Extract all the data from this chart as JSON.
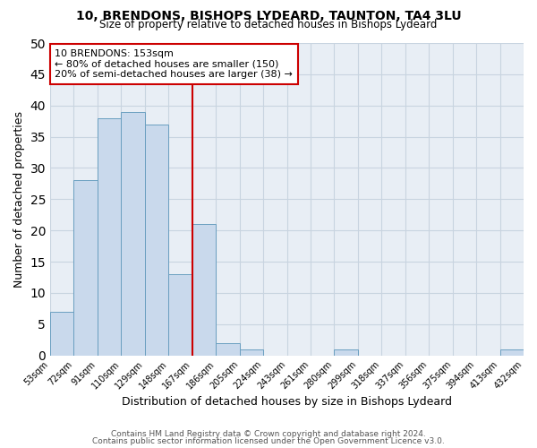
{
  "title": "10, BRENDONS, BISHOPS LYDEARD, TAUNTON, TA4 3LU",
  "subtitle": "Size of property relative to detached houses in Bishops Lydeard",
  "xlabel": "Distribution of detached houses by size in Bishops Lydeard",
  "ylabel": "Number of detached properties",
  "bar_color": "#c9d9ec",
  "bar_edge_color": "#6a9fc0",
  "background_color": "#ffffff",
  "plot_bg_color": "#e8eef5",
  "grid_color": "#c8d4e0",
  "annotation_box_color": "#cc0000",
  "vline_color": "#cc0000",
  "vline_x": 5.5,
  "annotation_title": "10 BRENDONS: 153sqm",
  "annotation_line1": "← 80% of detached houses are smaller (150)",
  "annotation_line2": "20% of semi-detached houses are larger (38) →",
  "tick_labels": [
    "53sqm",
    "72sqm",
    "91sqm",
    "110sqm",
    "129sqm",
    "148sqm",
    "167sqm",
    "186sqm",
    "205sqm",
    "224sqm",
    "243sqm",
    "261sqm",
    "280sqm",
    "299sqm",
    "318sqm",
    "337sqm",
    "356sqm",
    "375sqm",
    "394sqm",
    "413sqm",
    "432sqm"
  ],
  "values": [
    7,
    28,
    38,
    39,
    37,
    13,
    21,
    2,
    1,
    0,
    0,
    0,
    1,
    0,
    0,
    0,
    0,
    0,
    0,
    1
  ],
  "ylim": [
    0,
    50
  ],
  "yticks": [
    0,
    5,
    10,
    15,
    20,
    25,
    30,
    35,
    40,
    45,
    50
  ],
  "footer1": "Contains HM Land Registry data © Crown copyright and database right 2024.",
  "footer2": "Contains public sector information licensed under the Open Government Licence v3.0."
}
